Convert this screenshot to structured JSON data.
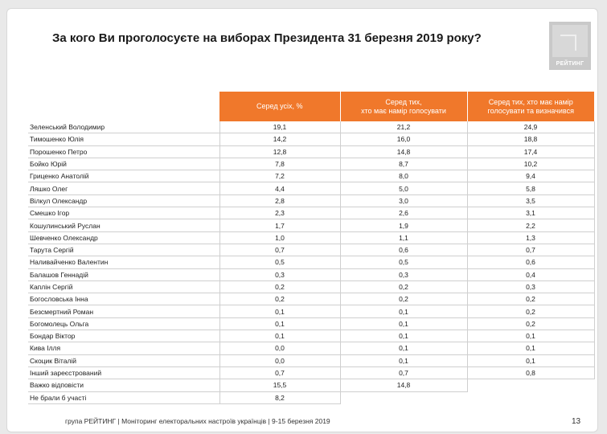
{
  "slide": {
    "title": "За кого Ви проголосуєте на виборах Президента 31 березня 2019 року?",
    "logo_text": "РЕЙТИНГ",
    "footer": "група РЕЙТИНГ | Моніторинг електоральних настроїв українців  | 9-15 березня 2019",
    "page_number": "13",
    "accent_color": "#f0782b"
  },
  "table": {
    "headers": [
      "Серед усіх, %",
      "Серед тих,\nхто має намір голосувати",
      "Серед тих, хто має намір\nголосувати та визначився"
    ],
    "rows": [
      {
        "name": "Зеленський Володимир",
        "all": "19,1",
        "voters": "21,2",
        "decided": "24,9"
      },
      {
        "name": "Тимошенко Юлія",
        "all": "14,2",
        "voters": "16,0",
        "decided": "18,8"
      },
      {
        "name": "Порошенко Петро",
        "all": "12,8",
        "voters": "14,8",
        "decided": "17,4"
      },
      {
        "name": "Бойко Юрій",
        "all": "7,8",
        "voters": "8,7",
        "decided": "10,2"
      },
      {
        "name": "Гриценко Анатолій",
        "all": "7,2",
        "voters": "8,0",
        "decided": "9,4"
      },
      {
        "name": "Ляшко Олег",
        "all": "4,4",
        "voters": "5,0",
        "decided": "5,8"
      },
      {
        "name": "Вілкул Олександр",
        "all": "2,8",
        "voters": "3,0",
        "decided": "3,5"
      },
      {
        "name": "Смешко Ігор",
        "all": "2,3",
        "voters": "2,6",
        "decided": "3,1"
      },
      {
        "name": "Кошулинський Руслан",
        "all": "1,7",
        "voters": "1,9",
        "decided": "2,2"
      },
      {
        "name": "Шевченко Олександр",
        "all": "1,0",
        "voters": "1,1",
        "decided": "1,3"
      },
      {
        "name": "Тарута Сергій",
        "all": "0,7",
        "voters": "0,6",
        "decided": "0,7"
      },
      {
        "name": "Наливайченко Валентин",
        "all": "0,5",
        "voters": "0,5",
        "decided": "0,6"
      },
      {
        "name": "Балашов Геннадій",
        "all": "0,3",
        "voters": "0,3",
        "decided": "0,4"
      },
      {
        "name": "Каплін Сергій",
        "all": "0,2",
        "voters": "0,2",
        "decided": "0,3"
      },
      {
        "name": "Богословська Інна",
        "all": "0,2",
        "voters": "0,2",
        "decided": "0,2"
      },
      {
        "name": "Безсмертний Роман",
        "all": "0,1",
        "voters": "0,1",
        "decided": "0,2"
      },
      {
        "name": "Богомолець Ольга",
        "all": "0,1",
        "voters": "0,1",
        "decided": "0,2"
      },
      {
        "name": "Бондар Віктор",
        "all": "0,1",
        "voters": "0,1",
        "decided": "0,1"
      },
      {
        "name": "Кива Ілля",
        "all": "0,0",
        "voters": "0,1",
        "decided": "0,1"
      },
      {
        "name": "Скоцик Віталій",
        "all": "0,0",
        "voters": "0,1",
        "decided": "0,1"
      },
      {
        "name": "Інший зареєстрований",
        "all": "0,7",
        "voters": "0,7",
        "decided": "0,8"
      },
      {
        "name": "Важко відповісти",
        "all": "15,5",
        "voters": "14,8",
        "decided": ""
      },
      {
        "name": "Не брали б участі",
        "all": "8,2",
        "voters": "",
        "decided": ""
      }
    ]
  }
}
